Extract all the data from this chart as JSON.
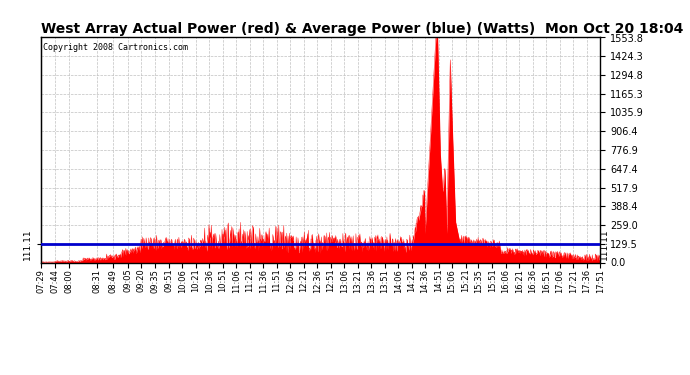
{
  "title": "West Array Actual Power (red) & Average Power (blue) (Watts)  Mon Oct 20 18:04",
  "copyright": "Copyright 2008 Cartronics.com",
  "avg_line_value": 129.5,
  "left_right_label": "111.11",
  "ylim_max": 1553.8,
  "yticks": [
    0.0,
    129.5,
    259.0,
    388.4,
    517.9,
    647.4,
    776.9,
    906.4,
    1035.9,
    1165.3,
    1294.8,
    1424.3,
    1553.8
  ],
  "red_color": "#ff0000",
  "blue_color": "#0000cc",
  "grid_color": "#c0c0c0",
  "title_fontsize": 10,
  "time_labels": [
    "07:29",
    "07:44",
    "08:00",
    "08:31",
    "08:49",
    "09:05",
    "09:20",
    "09:35",
    "09:51",
    "10:06",
    "10:21",
    "10:36",
    "10:51",
    "11:06",
    "11:21",
    "11:36",
    "11:51",
    "12:06",
    "12:21",
    "12:36",
    "12:51",
    "13:06",
    "13:21",
    "13:36",
    "13:51",
    "14:06",
    "14:21",
    "14:36",
    "14:51",
    "15:06",
    "15:21",
    "15:35",
    "15:51",
    "16:06",
    "16:21",
    "16:36",
    "16:51",
    "17:06",
    "17:21",
    "17:36",
    "17:51"
  ]
}
